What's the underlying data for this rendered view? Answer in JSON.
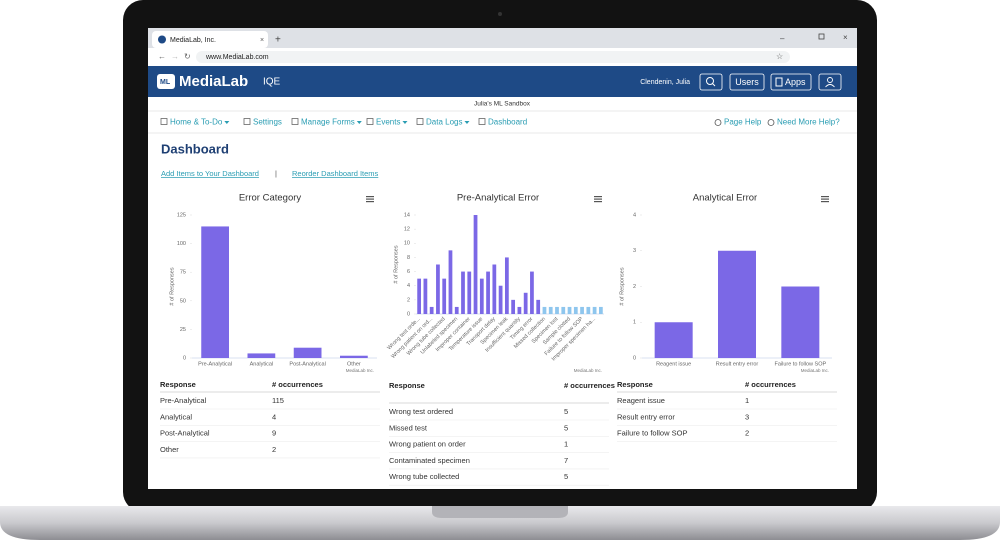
{
  "browser": {
    "tab_title": "MediaLab, Inc.",
    "url": "www.MediaLab.com"
  },
  "header": {
    "logo": "MediaLab",
    "product": "IQE",
    "user": "Clendenin, Julia",
    "buttons": [
      "Users",
      "Apps"
    ]
  },
  "sandbox": "Julia's ML Sandbox",
  "nav": {
    "left": [
      "Home & To-Do",
      "Settings",
      "Manage Forms",
      "Events",
      "Data Logs",
      "Dashboard"
    ],
    "right": [
      "Page Help",
      "Need More Help?"
    ]
  },
  "dashboard": {
    "title": "Dashboard",
    "links": [
      "Add Items to Your Dashboard",
      "Reorder Dashboard Items"
    ],
    "separator": "|"
  },
  "chart_data": [
    {
      "type": "bar",
      "title": "Error Category",
      "y_label": "# of Responses",
      "credit": "MediaLab Inc.",
      "categories": [
        "Pre-Analytical",
        "Analytical",
        "Post-Analytical",
        "Other"
      ],
      "values": [
        115,
        4,
        9,
        2
      ],
      "color": "#7b68e6",
      "ylim": [
        0,
        125
      ],
      "yticks": [
        0,
        25,
        50,
        75,
        100,
        125
      ]
    },
    {
      "type": "bar",
      "title": "Pre-Analytical Error",
      "y_label": "# of Responses",
      "credit": "MediaLab Inc.",
      "categories": [
        "Wrong test orde...",
        null,
        "Wrong patient on ord...",
        null,
        "Wrong tube collected",
        null,
        "Unlabeled specimen",
        null,
        "Improper container",
        null,
        "Temperature issue",
        null,
        "Transport delay",
        null,
        "Specimen leak",
        null,
        "Insufficient quantity",
        null,
        "Timing error",
        null,
        "Missed collection",
        null,
        "Specimen lost",
        null,
        "Sample clotted",
        null,
        "Failure to follow SOP",
        null,
        "Improper specimen ha...",
        null
      ],
      "values": [
        5,
        5,
        1,
        7,
        5,
        9,
        1,
        6,
        6,
        14,
        5,
        6,
        7,
        4,
        8,
        2,
        1,
        3,
        6,
        2,
        1,
        1,
        1,
        1,
        1,
        1,
        1,
        1,
        1,
        1
      ],
      "color": "#7b68e6",
      "colors": [
        "#7b68e6",
        "#7b68e6",
        "#7b68e6",
        "#7b68e6",
        "#7b68e6",
        "#7b68e6",
        "#7b68e6",
        "#7b68e6",
        "#7b68e6",
        "#7b68e6",
        "#7b68e6",
        "#7b68e6",
        "#7b68e6",
        "#7b68e6",
        "#7b68e6",
        "#7b68e6",
        "#7b68e6",
        "#7b68e6",
        "#7b68e6",
        "#7b68e6",
        "#8ec6ee",
        "#8ec6ee",
        "#8ec6ee",
        "#8ec6ee",
        "#8ec6ee",
        "#8ec6ee",
        "#8ec6ee",
        "#8ec6ee",
        "#8ec6ee",
        "#8ec6ee"
      ],
      "ylim": [
        0,
        14
      ],
      "yticks": [
        0,
        2,
        4,
        6,
        8,
        10,
        12,
        14
      ]
    },
    {
      "type": "bar",
      "title": "Analytical Error",
      "y_label": "# of Responses",
      "credit": "MediaLab Inc.",
      "categories": [
        "Reagent issue",
        "Result entry error",
        "Failure to follow SOP"
      ],
      "values": [
        1,
        3,
        2
      ],
      "color": "#7b68e6",
      "ylim": [
        0,
        4
      ],
      "yticks": [
        0,
        1,
        2,
        3,
        4
      ]
    }
  ],
  "tables": [
    {
      "columns": [
        "Response",
        "# occurrences"
      ],
      "rows": [
        [
          "Pre-Analytical",
          115
        ],
        [
          "Analytical",
          4
        ],
        [
          "Post-Analytical",
          9
        ],
        [
          "Other",
          2
        ]
      ]
    },
    {
      "columns": [
        "Response",
        "# occurrences"
      ],
      "rows": [
        [
          "Wrong test ordered",
          5
        ],
        [
          "Missed test",
          5
        ],
        [
          "Wrong patient on order",
          1
        ],
        [
          "Contaminated specimen",
          7
        ],
        [
          "Wrong tube collected",
          5
        ]
      ]
    },
    {
      "columns": [
        "Response",
        "# occurrences"
      ],
      "rows": [
        [
          "Reagent issue",
          1
        ],
        [
          "Result entry error",
          3
        ],
        [
          "Failure to follow SOP",
          2
        ]
      ]
    }
  ]
}
